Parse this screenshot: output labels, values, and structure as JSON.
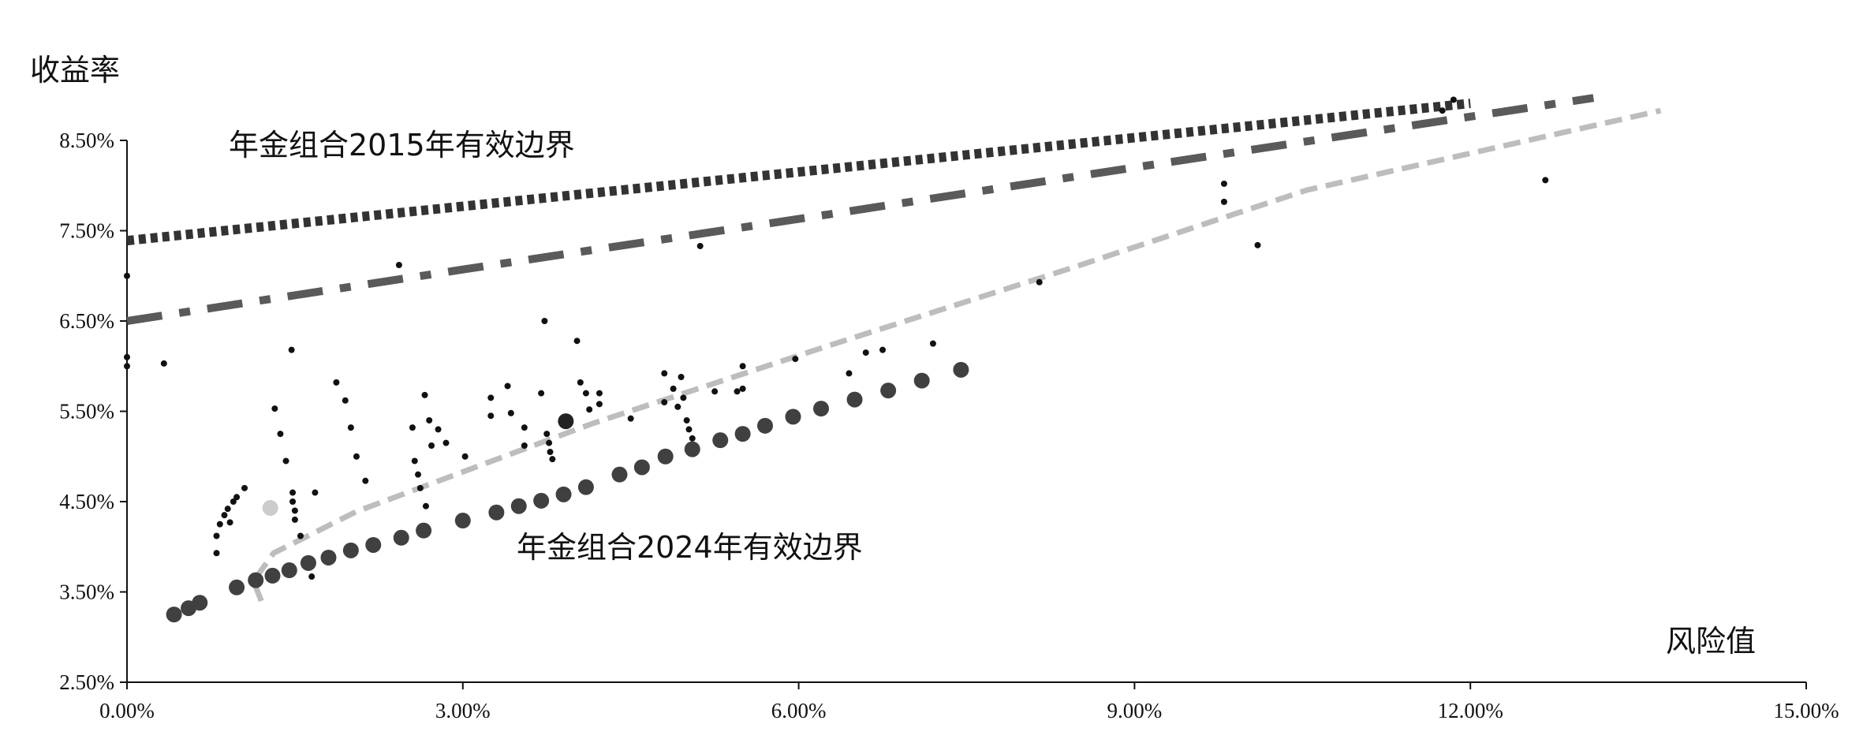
{
  "chart_data": {
    "type": "scatter",
    "ylabel": "收益率",
    "xlabel": "风险值",
    "annotations": [
      "年金组合2015年有效边界",
      "年金组合2024年有效边界"
    ],
    "xlim": [
      0,
      15
    ],
    "ylim": [
      2.5,
      8.5
    ],
    "xticks": [
      {
        "value": 0,
        "label": "0.00%"
      },
      {
        "value": 3,
        "label": "3.00%"
      },
      {
        "value": 6,
        "label": "6.00%"
      },
      {
        "value": 9,
        "label": "9.00%"
      },
      {
        "value": 12,
        "label": "12.00%"
      },
      {
        "value": 15,
        "label": "15.00%"
      }
    ],
    "yticks": [
      {
        "value": 2.5,
        "label": "2.50%"
      },
      {
        "value": 3.5,
        "label": "3.50%"
      },
      {
        "value": 4.5,
        "label": "4.50%"
      },
      {
        "value": 5.5,
        "label": "5.50%"
      },
      {
        "value": 6.5,
        "label": "6.50%"
      },
      {
        "value": 7.5,
        "label": "7.50%"
      },
      {
        "value": 8.5,
        "label": "8.50%"
      }
    ],
    "series": [
      {
        "kind": "line",
        "dash": "dotted",
        "color": "#333333",
        "x": [
          0,
          3,
          6,
          9,
          12
        ],
        "values": [
          7.39,
          7.77,
          8.15,
          8.53,
          8.91
        ]
      },
      {
        "kind": "line",
        "dash": "dashdot",
        "color": "#5a5a5a",
        "x": [
          0,
          3,
          6,
          9,
          13.1
        ],
        "values": [
          6.5,
          7.07,
          7.63,
          8.2,
          8.97
        ]
      },
      {
        "kind": "line",
        "dash": "dashed",
        "color": "#bdbdbd",
        "x": [
          1.2,
          1.13,
          1.31,
          2.05,
          4.17,
          6.3,
          8.42,
          10.54,
          13.7
        ],
        "values": [
          3.4,
          3.62,
          3.93,
          4.39,
          5.37,
          6.24,
          7.08,
          7.95,
          8.83
        ]
      },
      {
        "kind": "points",
        "marker": "small",
        "color": "#111111",
        "x": [
          0,
          0,
          0,
          0.33,
          0.8,
          0.8,
          0.83,
          0.87,
          0.9,
          0.95,
          0.98,
          1.05,
          0.92,
          1.32,
          1.37,
          1.42,
          1.47,
          1.48,
          1.48,
          1.5,
          1.5,
          1.55,
          1.65,
          1.68,
          1.87,
          1.95,
          2.0,
          2.05,
          2.13,
          2.43,
          2.55,
          2.57,
          2.6,
          2.62,
          2.67,
          2.66,
          2.7,
          2.78,
          2.72,
          2.85,
          3.02,
          3.25,
          3.25,
          3.4,
          3.43,
          3.55,
          3.55,
          3.7,
          3.73,
          3.75,
          3.77,
          3.78,
          3.8,
          4.02,
          4.05,
          4.1,
          4.13,
          4.22,
          4.22,
          4.5,
          4.8,
          4.8,
          4.88,
          4.92,
          4.95,
          4.97,
          5.0,
          5.02,
          5.05,
          5.08,
          5.12,
          5.25,
          5.45,
          5.5,
          5.5,
          5.97,
          6.45,
          6.6,
          6.75,
          7.2,
          8.15,
          9.8,
          9.8,
          10.1,
          11.75,
          11.85,
          12.67
        ],
        "values": [
          7.0,
          6.1,
          6.0,
          6.03,
          4.12,
          3.93,
          4.25,
          4.35,
          4.42,
          4.5,
          4.55,
          4.65,
          4.27,
          5.53,
          5.25,
          4.95,
          6.18,
          4.6,
          4.5,
          4.4,
          4.3,
          4.12,
          3.67,
          4.6,
          5.82,
          5.62,
          5.32,
          5.0,
          4.73,
          7.12,
          5.32,
          4.95,
          4.8,
          4.65,
          4.45,
          5.68,
          5.4,
          5.3,
          5.12,
          5.15,
          5.0,
          5.65,
          5.45,
          5.78,
          5.48,
          5.32,
          5.12,
          5.7,
          6.5,
          5.25,
          5.15,
          5.05,
          4.97,
          6.28,
          5.82,
          5.7,
          5.52,
          5.7,
          5.58,
          5.42,
          5.92,
          5.6,
          5.75,
          5.55,
          5.88,
          5.65,
          5.4,
          5.3,
          5.2,
          5.1,
          7.33,
          5.72,
          5.72,
          6.0,
          5.75,
          6.08,
          5.92,
          6.15,
          6.18,
          6.25,
          6.93,
          8.02,
          7.82,
          7.34,
          8.83,
          8.95,
          8.06
        ]
      },
      {
        "kind": "points",
        "marker": "large",
        "color": "#404040",
        "x": [
          0.42,
          0.55,
          0.65,
          0.98,
          1.15,
          1.3,
          1.45,
          1.62,
          1.8,
          2.0,
          2.2,
          2.45,
          2.65,
          3.0,
          3.3,
          3.5,
          3.7,
          3.9,
          4.1,
          4.4,
          4.6,
          4.81,
          5.05,
          5.3,
          5.5,
          5.7,
          5.95,
          6.2,
          6.5,
          6.8,
          7.1,
          7.45
        ],
        "values": [
          3.25,
          3.32,
          3.38,
          3.55,
          3.63,
          3.68,
          3.74,
          3.82,
          3.88,
          3.96,
          4.02,
          4.1,
          4.18,
          4.29,
          4.38,
          4.45,
          4.51,
          4.58,
          4.66,
          4.8,
          4.88,
          5.0,
          5.08,
          5.18,
          5.25,
          5.34,
          5.44,
          5.53,
          5.63,
          5.73,
          5.84,
          5.96
        ]
      },
      {
        "kind": "points",
        "marker": "large",
        "color": "#222222",
        "x": [
          3.92
        ],
        "values": [
          5.39
        ]
      },
      {
        "kind": "points",
        "marker": "large",
        "color": "#cccccc",
        "x": [
          1.28
        ],
        "values": [
          4.43
        ]
      }
    ]
  }
}
